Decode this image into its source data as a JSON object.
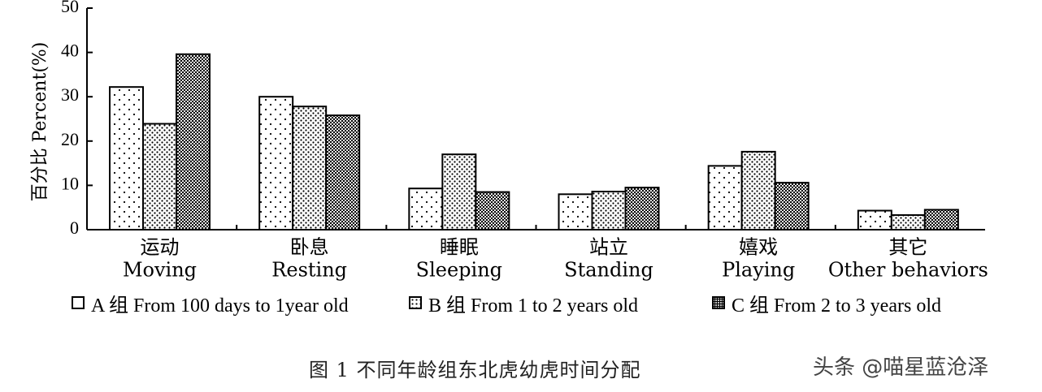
{
  "chart_data": {
    "type": "bar",
    "categories": [
      {
        "zh": "运动",
        "en": "Moving"
      },
      {
        "zh": "卧息",
        "en": "Resting"
      },
      {
        "zh": "睡眠",
        "en": "Sleeping"
      },
      {
        "zh": "站立",
        "en": "Standing"
      },
      {
        "zh": "嬉戏",
        "en": "Playing"
      },
      {
        "zh": "其它",
        "en": "Other behaviors"
      }
    ],
    "series": [
      {
        "name": "A 组 From 100 days to 1year old",
        "pattern": "sparse-dots",
        "values": [
          32.2,
          30.0,
          9.3,
          8.0,
          14.4,
          4.3
        ]
      },
      {
        "name": "B 组 From 1 to 2 years old",
        "pattern": "medium-dots",
        "values": [
          23.9,
          27.8,
          17.0,
          8.6,
          17.6,
          3.3
        ]
      },
      {
        "name": "C 组 From 2 to 3 years old",
        "pattern": "dense-dots",
        "values": [
          39.6,
          25.8,
          8.5,
          9.5,
          10.6,
          4.5
        ]
      }
    ],
    "ylabel": "百分比 Percent(%)",
    "ylim": [
      0,
      50
    ],
    "yticks": [
      0,
      10,
      20,
      30,
      40,
      50
    ],
    "grid": false,
    "legend_position": "bottom"
  },
  "caption": "图  1   不同年龄组东北虎幼虎时间分配",
  "watermark": "头条 @喵星蓝沧泽"
}
